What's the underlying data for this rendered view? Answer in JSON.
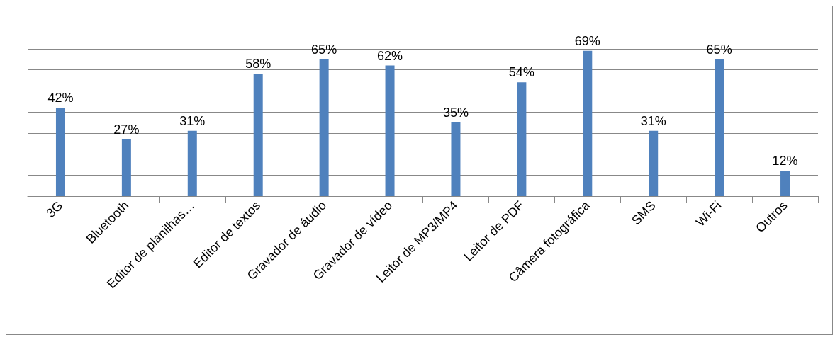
{
  "chart_data": {
    "type": "bar",
    "categories": [
      "3G",
      "Bluetooth",
      "Editor de planilhas…",
      "Editor de textos",
      "Gravador de áudio",
      "Gravador de vídeo",
      "Leitor de MP3/MP4",
      "Leitor de PDF",
      "Câmera fotográfica",
      "SMS",
      "Wi-Fi",
      "Outros"
    ],
    "values": [
      42,
      27,
      31,
      58,
      65,
      62,
      35,
      54,
      69,
      31,
      65,
      12
    ],
    "value_labels": [
      "42%",
      "27%",
      "31%",
      "58%",
      "65%",
      "62%",
      "35%",
      "54%",
      "69%",
      "31%",
      "65%",
      "12%"
    ],
    "color": "#4f81bd",
    "ylim": [
      0,
      80
    ],
    "yticks": [
      {
        "value": 0,
        "label": null
      },
      {
        "value": 10,
        "label": null
      },
      {
        "value": 20,
        "label": null
      },
      {
        "value": 30,
        "label": null
      },
      {
        "value": 40,
        "label": null
      },
      {
        "value": 50,
        "label": null
      },
      {
        "value": 60,
        "label": null
      },
      {
        "value": 70,
        "label": null
      },
      {
        "value": 80,
        "label": null
      }
    ],
    "grid": "y",
    "tick_labels": "x"
  }
}
